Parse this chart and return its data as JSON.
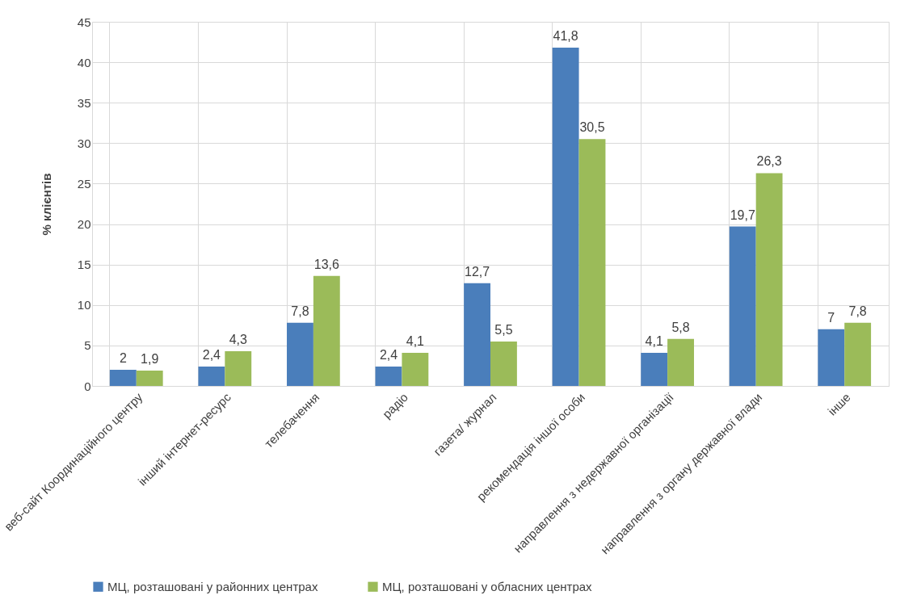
{
  "chart_data": {
    "type": "bar",
    "ylabel": "% клієнтів",
    "categories": [
      "веб-сайт Координаційного центру",
      "інший інтернет-ресурс",
      "телебачення",
      "радіо",
      "газета/ журнал",
      "рекомендація іншої особи",
      "направлення з недержавної організації",
      "направлення з органу державної влади",
      "інше"
    ],
    "series": [
      {
        "name": "МЦ, розташовані у районних центрах",
        "color": "#4a7ebb",
        "values": [
          2,
          2.4,
          7.8,
          2.4,
          12.7,
          41.8,
          4.1,
          19.7,
          7
        ],
        "value_labels": [
          "2",
          "2,4",
          "7,8",
          "2,4",
          "12,7",
          "41,8",
          "4,1",
          "19,7",
          "7"
        ]
      },
      {
        "name": "МЦ, розташовані у обласних центрах",
        "color": "#9bbb59",
        "values": [
          1.9,
          4.3,
          13.6,
          4.1,
          5.5,
          30.5,
          5.8,
          26.3,
          7.8
        ],
        "value_labels": [
          "1,9",
          "4,3",
          "13,6",
          "4,1",
          "5,5",
          "30,5",
          "5,8",
          "26,3",
          "7,8"
        ]
      }
    ],
    "ylim": [
      0,
      45
    ],
    "yticks": [
      0,
      5,
      10,
      15,
      20,
      25,
      30,
      35,
      40,
      45
    ],
    "grid": true,
    "legend": "bottom"
  }
}
